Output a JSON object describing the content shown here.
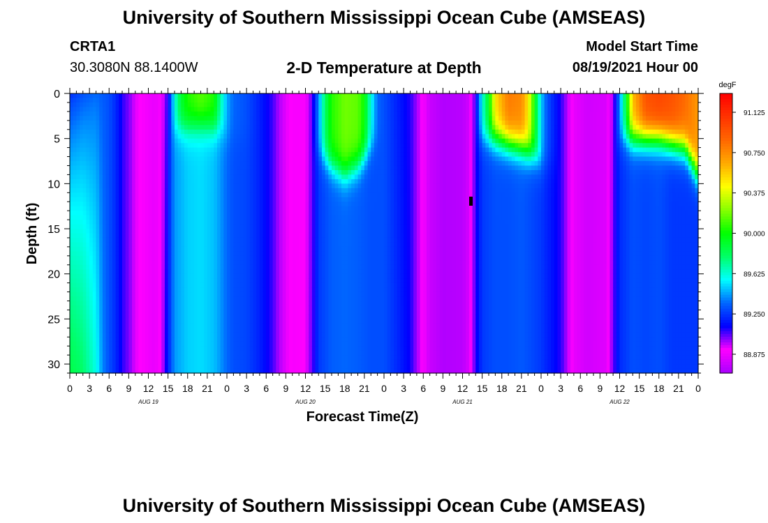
{
  "header": {
    "title_top": "University of Southern Mississippi Ocean Cube (AMSEAS)",
    "title_bottom": "University of Southern Mississippi Ocean Cube (AMSEAS)",
    "station": "CRTA1",
    "coords": "30.3080N  88.1400W",
    "model_start_label": "Model Start Time",
    "model_start_value": "08/19/2021 Hour 00"
  },
  "chart_data": {
    "type": "heatmap",
    "title": "2-D Temperature at Depth",
    "xlabel": "Forecast Time(Z)",
    "ylabel": "Depth (ft)",
    "units": "degF",
    "x_hours": [
      0,
      96
    ],
    "ylim": [
      0,
      31
    ],
    "y_ticks": [
      "0",
      "5",
      "10",
      "15",
      "20",
      "25",
      "30"
    ],
    "x_tick_labels": [
      "0",
      "3",
      "6",
      "9",
      "12",
      "15",
      "18",
      "21",
      "0",
      "3",
      "6",
      "9",
      "12",
      "15",
      "18",
      "21",
      "0",
      "3",
      "6",
      "9",
      "12",
      "15",
      "18",
      "21",
      "0",
      "3",
      "6",
      "9",
      "12",
      "15",
      "18",
      "21",
      "0"
    ],
    "day_labels": [
      "AUG 19",
      "AUG 20",
      "AUG 21",
      "AUG 22"
    ],
    "colorbar_ticks": [
      "91.125",
      "90.750",
      "90.375",
      "90.000",
      "89.625",
      "89.250",
      "88.875"
    ],
    "color_range": [
      88.7,
      91.3
    ],
    "palette": [
      "#aa00ff",
      "#ff00ff",
      "#0000ff",
      "#0066ff",
      "#00ffff",
      "#00ff66",
      "#00ff00",
      "#88ff00",
      "#ffff00",
      "#ffaa00",
      "#ff6600",
      "#ff3300",
      "#ff0000"
    ],
    "surface_temp_by_hour": [
      [
        0,
        89.22
      ],
      [
        2,
        89.3
      ],
      [
        4,
        89.35
      ],
      [
        6,
        89.3
      ],
      [
        7,
        89.22
      ],
      [
        8,
        89.1
      ],
      [
        9,
        89.03
      ],
      [
        10,
        88.94
      ],
      [
        12,
        88.88
      ],
      [
        13,
        88.86
      ],
      [
        14,
        88.9
      ],
      [
        15,
        89.1
      ],
      [
        16,
        89.6
      ],
      [
        17,
        89.9
      ],
      [
        18,
        90.05
      ],
      [
        20,
        90.15
      ],
      [
        22,
        90.05
      ],
      [
        23,
        89.7
      ],
      [
        24,
        89.45
      ],
      [
        25,
        89.35
      ],
      [
        27,
        89.3
      ],
      [
        29,
        89.2
      ],
      [
        31,
        89.08
      ],
      [
        32,
        88.98
      ],
      [
        34,
        88.9
      ],
      [
        36,
        88.9
      ],
      [
        37,
        89.05
      ],
      [
        38,
        89.4
      ],
      [
        39,
        89.8
      ],
      [
        40,
        90.05
      ],
      [
        42,
        90.18
      ],
      [
        44,
        90.15
      ],
      [
        45,
        90.0
      ],
      [
        46,
        89.6
      ],
      [
        47,
        89.35
      ],
      [
        48,
        89.3
      ],
      [
        50,
        89.2
      ],
      [
        52,
        89.1
      ],
      [
        53,
        89.0
      ],
      [
        54,
        88.9
      ],
      [
        55,
        88.78
      ],
      [
        57,
        88.72
      ],
      [
        60,
        88.74
      ],
      [
        61,
        88.8
      ],
      [
        62,
        89.1
      ],
      [
        63,
        89.6
      ],
      [
        64,
        89.95
      ],
      [
        65,
        90.5
      ],
      [
        67,
        90.8
      ],
      [
        69,
        90.75
      ],
      [
        70,
        90.5
      ],
      [
        71,
        90.0
      ],
      [
        72,
        89.5
      ],
      [
        73,
        89.3
      ],
      [
        75,
        89.1
      ],
      [
        76,
        88.98
      ],
      [
        77,
        88.86
      ],
      [
        79,
        88.8
      ],
      [
        82,
        88.82
      ],
      [
        83,
        89.0
      ],
      [
        84,
        89.4
      ],
      [
        85,
        89.9
      ],
      [
        86,
        90.6
      ],
      [
        88,
        90.95
      ],
      [
        90,
        91.0
      ],
      [
        92,
        90.95
      ],
      [
        94,
        90.85
      ],
      [
        96,
        90.7
      ]
    ],
    "deep_temp_by_hour": [
      [
        0,
        89.85
      ],
      [
        2,
        89.78
      ],
      [
        4,
        89.6
      ],
      [
        5,
        89.4
      ],
      [
        6,
        89.3
      ],
      [
        7,
        89.22
      ],
      [
        8,
        89.1
      ],
      [
        9,
        89.03
      ],
      [
        10,
        88.94
      ],
      [
        12,
        88.88
      ],
      [
        13,
        88.86
      ],
      [
        14,
        88.92
      ],
      [
        15,
        89.2
      ],
      [
        16,
        89.42
      ],
      [
        18,
        89.5
      ],
      [
        20,
        89.52
      ],
      [
        22,
        89.48
      ],
      [
        23,
        89.42
      ],
      [
        24,
        89.35
      ],
      [
        25,
        89.3
      ],
      [
        27,
        89.28
      ],
      [
        29,
        89.2
      ],
      [
        31,
        89.08
      ],
      [
        32,
        88.98
      ],
      [
        34,
        88.9
      ],
      [
        36,
        88.92
      ],
      [
        37,
        89.05
      ],
      [
        38,
        89.25
      ],
      [
        40,
        89.33
      ],
      [
        42,
        89.35
      ],
      [
        44,
        89.33
      ],
      [
        46,
        89.3
      ],
      [
        48,
        89.3
      ],
      [
        50,
        89.22
      ],
      [
        52,
        89.12
      ],
      [
        53,
        89.0
      ],
      [
        54,
        88.9
      ],
      [
        55,
        88.78
      ],
      [
        57,
        88.72
      ],
      [
        60,
        88.74
      ],
      [
        61,
        88.82
      ],
      [
        62,
        89.1
      ],
      [
        63,
        89.25
      ],
      [
        65,
        89.3
      ],
      [
        67,
        89.3
      ],
      [
        69,
        89.32
      ],
      [
        70,
        89.3
      ],
      [
        72,
        89.25
      ],
      [
        73,
        89.2
      ],
      [
        75,
        89.1
      ],
      [
        76,
        88.98
      ],
      [
        77,
        88.86
      ],
      [
        79,
        88.8
      ],
      [
        82,
        88.84
      ],
      [
        83,
        89.05
      ],
      [
        84,
        89.22
      ],
      [
        86,
        89.3
      ],
      [
        88,
        89.28
      ],
      [
        90,
        89.3
      ],
      [
        92,
        89.25
      ],
      [
        94,
        89.25
      ],
      [
        96,
        89.25
      ]
    ],
    "mixed_layer_depth_ft": [
      [
        0,
        10
      ],
      [
        4,
        8
      ],
      [
        6,
        5
      ],
      [
        14,
        5
      ],
      [
        16,
        4
      ],
      [
        20,
        3.5
      ],
      [
        23,
        4
      ],
      [
        24,
        5
      ],
      [
        36,
        5
      ],
      [
        37,
        6
      ],
      [
        40,
        8
      ],
      [
        42,
        9
      ],
      [
        44,
        8
      ],
      [
        46,
        6
      ],
      [
        48,
        5
      ],
      [
        60,
        5
      ],
      [
        61,
        4.5
      ],
      [
        63,
        5
      ],
      [
        65,
        5
      ],
      [
        67,
        5.5
      ],
      [
        69,
        6
      ],
      [
        71,
        7
      ],
      [
        72,
        8
      ],
      [
        82,
        8
      ],
      [
        84,
        5
      ],
      [
        90,
        5
      ],
      [
        94,
        6
      ],
      [
        96,
        9
      ]
    ]
  }
}
